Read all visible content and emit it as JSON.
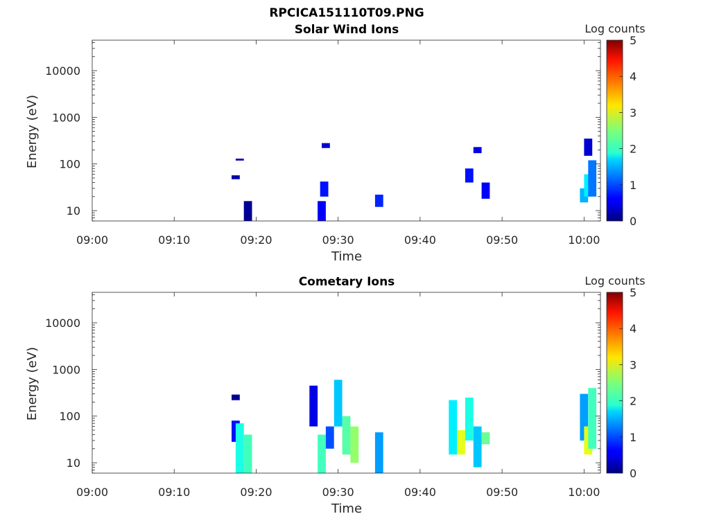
{
  "figure": {
    "title": "RPCICA151110T09.PNG"
  },
  "chart_data": [
    {
      "type": "heatmap",
      "title": "Solar Wind Ions",
      "xlabel": "Time",
      "ylabel": "Energy (eV)",
      "x_ticks": [
        "09:00",
        "09:10",
        "09:20",
        "09:30",
        "09:40",
        "09:50",
        "10:00"
      ],
      "y_ticks": [
        "10",
        "100",
        "1000",
        "10000"
      ],
      "y_scale": "log",
      "xlim": [
        "09:00",
        "10:02"
      ],
      "ylim": [
        6,
        45000
      ],
      "colorbar": {
        "label": "Log counts",
        "ticks": [
          "0",
          "1",
          "2",
          "3",
          "4",
          "5"
        ],
        "range": [
          0,
          5
        ],
        "colormap": "jet"
      },
      "cells": [
        {
          "t": "09:17.5",
          "e": [
            47,
            57
          ],
          "v": 0.2
        },
        {
          "t": "09:18",
          "e": [
            118,
            130
          ],
          "v": 0.3
        },
        {
          "t": "09:19",
          "e": [
            6,
            16
          ],
          "v": 0.1
        },
        {
          "t": "09:28",
          "e": [
            6,
            16
          ],
          "v": 0.6
        },
        {
          "t": "09:28.3",
          "e": [
            20,
            42
          ],
          "v": 0.7
        },
        {
          "t": "09:28.5",
          "e": [
            220,
            280
          ],
          "v": 0.4
        },
        {
          "t": "09:35",
          "e": [
            12,
            22
          ],
          "v": 0.8
        },
        {
          "t": "09:46",
          "e": [
            40,
            80
          ],
          "v": 0.7
        },
        {
          "t": "09:47",
          "e": [
            170,
            230
          ],
          "v": 0.5
        },
        {
          "t": "09:48",
          "e": [
            18,
            40
          ],
          "v": 0.6
        },
        {
          "t": "10:00",
          "e": [
            15,
            30
          ],
          "v": 1.5
        },
        {
          "t": "10:00.5",
          "e": [
            20,
            60
          ],
          "v": 1.8
        },
        {
          "t": "10:01",
          "e": [
            20,
            120
          ],
          "v": 1.2
        },
        {
          "t": "10:00.5",
          "e": [
            150,
            350
          ],
          "v": 0.4
        }
      ]
    },
    {
      "type": "heatmap",
      "title": "Cometary Ions",
      "xlabel": "Time",
      "ylabel": "Energy (eV)",
      "x_ticks": [
        "09:00",
        "09:10",
        "09:20",
        "09:30",
        "09:40",
        "09:50",
        "10:00"
      ],
      "y_ticks": [
        "10",
        "100",
        "1000",
        "10000"
      ],
      "y_scale": "log",
      "xlim": [
        "09:00",
        "10:02"
      ],
      "ylim": [
        6,
        45000
      ],
      "colorbar": {
        "label": "Log counts",
        "ticks": [
          "0",
          "1",
          "2",
          "3",
          "4",
          "5"
        ],
        "range": [
          0,
          5
        ],
        "colormap": "jet"
      },
      "cells": [
        {
          "t": "09:17.5",
          "e": [
            220,
            290
          ],
          "v": 0.1
        },
        {
          "t": "09:17.5",
          "e": [
            28,
            80
          ],
          "v": 0.7
        },
        {
          "t": "09:18",
          "e": [
            6,
            70
          ],
          "v": 2.0
        },
        {
          "t": "09:19",
          "e": [
            6,
            40
          ],
          "v": 2.2
        },
        {
          "t": "09:27",
          "e": [
            60,
            450
          ],
          "v": 0.5
        },
        {
          "t": "09:28",
          "e": [
            6,
            40
          ],
          "v": 2.2
        },
        {
          "t": "09:29",
          "e": [
            20,
            60
          ],
          "v": 1.0
        },
        {
          "t": "09:30",
          "e": [
            60,
            600
          ],
          "v": 1.6
        },
        {
          "t": "09:31",
          "e": [
            15,
            100
          ],
          "v": 2.3
        },
        {
          "t": "09:32",
          "e": [
            10,
            60
          ],
          "v": 2.6
        },
        {
          "t": "09:35",
          "e": [
            6,
            45
          ],
          "v": 1.4
        },
        {
          "t": "09:44",
          "e": [
            15,
            220
          ],
          "v": 1.8
        },
        {
          "t": "09:45",
          "e": [
            15,
            50
          ],
          "v": 3.0
        },
        {
          "t": "09:46",
          "e": [
            30,
            250
          ],
          "v": 2.0
        },
        {
          "t": "09:47",
          "e": [
            8,
            60
          ],
          "v": 1.6
        },
        {
          "t": "09:48",
          "e": [
            25,
            45
          ],
          "v": 2.4
        },
        {
          "t": "10:00",
          "e": [
            30,
            300
          ],
          "v": 1.4
        },
        {
          "t": "10:00.5",
          "e": [
            15,
            60
          ],
          "v": 3.0
        },
        {
          "t": "10:01",
          "e": [
            20,
            400
          ],
          "v": 2.2
        }
      ]
    }
  ]
}
